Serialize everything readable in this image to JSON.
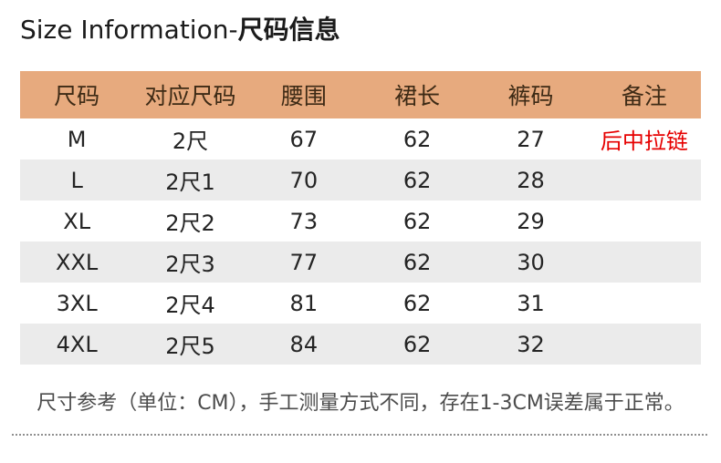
{
  "title": {
    "en": "Size Information-",
    "zh": "尺码信息"
  },
  "colors": {
    "header_bg": "#e7aa7e",
    "header_text": "#3d2a15",
    "alt_row_bg": "#ebebeb",
    "remark_red": "#e60000",
    "body_text": "#242424",
    "footnote_text": "#4c4c4c"
  },
  "chart_data": {
    "type": "table",
    "title": "Size Information-尺码信息",
    "columns": [
      "尺码",
      "对应尺码",
      "腰围",
      "裙长",
      "裤码",
      "备注"
    ],
    "rows": [
      [
        "M",
        "2尺",
        "67",
        "62",
        "27",
        "后中拉链"
      ],
      [
        "L",
        "2尺1",
        "70",
        "62",
        "28",
        ""
      ],
      [
        "XL",
        "2尺2",
        "73",
        "62",
        "29",
        ""
      ],
      [
        "XXL",
        "2尺3",
        "77",
        "62",
        "30",
        ""
      ],
      [
        "3XL",
        "2尺4",
        "81",
        "62",
        "31",
        ""
      ],
      [
        "4XL",
        "2尺5",
        "84",
        "62",
        "32",
        ""
      ]
    ],
    "footnote": "尺寸参考（单位：CM），手工测量方式不同，存在1-3CM误差属于正常。"
  }
}
